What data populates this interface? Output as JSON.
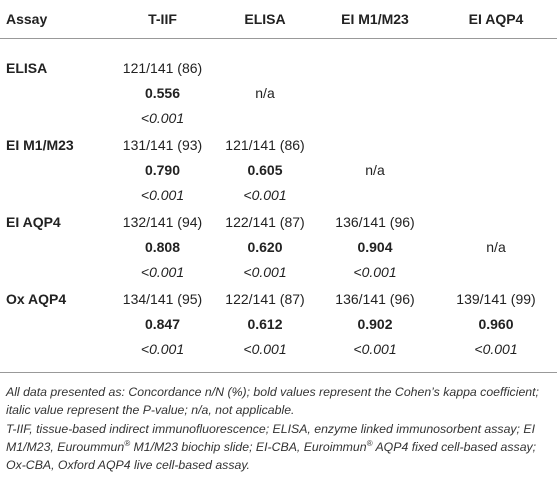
{
  "table": {
    "header": [
      "Assay",
      "T-IIF",
      "ELISA",
      "EI M1/M23",
      "EI AQP4"
    ],
    "rows": [
      {
        "label": "ELISA",
        "cells": [
          {
            "concordance": "121/141 (86)",
            "kappa": "0.556",
            "p": "<0.001"
          },
          {
            "text": "n/a"
          }
        ]
      },
      {
        "label": "EI M1/M23",
        "cells": [
          {
            "concordance": "131/141 (93)",
            "kappa": "0.790",
            "p": "<0.001"
          },
          {
            "concordance": "121/141 (86)",
            "kappa": "0.605",
            "p": "<0.001"
          },
          {
            "text": "n/a"
          }
        ]
      },
      {
        "label": "EI AQP4",
        "cells": [
          {
            "concordance": "132/141 (94)",
            "kappa": "0.808",
            "p": "<0.001"
          },
          {
            "concordance": "122/141 (87)",
            "kappa": "0.620",
            "p": "<0.001"
          },
          {
            "concordance": "136/141 (96)",
            "kappa": "0.904",
            "p": "<0.001"
          },
          {
            "text": "n/a"
          }
        ]
      },
      {
        "label": "Ox AQP4",
        "cells": [
          {
            "concordance": "134/141 (95)",
            "kappa": "0.847",
            "p": "<0.001"
          },
          {
            "concordance": "122/141 (87)",
            "kappa": "0.612",
            "p": "<0.001"
          },
          {
            "concordance": "136/141 (96)",
            "kappa": "0.902",
            "p": "<0.001"
          },
          {
            "concordance": "139/141 (99)",
            "kappa": "0.960",
            "p": "<0.001"
          }
        ]
      }
    ]
  },
  "footnotes": [
    "All data presented as: Concordance n/N (%); bold values represent the Cohen’s kappa coefficient; italic value represent the P-value; n/a, not applicable.",
    "T-IIF, tissue-based indirect immunofluorescence; ELISA, enzyme linked immunosorbent assay; EI M1/M23, Euroummun® M1/M23 biochip slide; EI-CBA, Euroimmun® AQP4 fixed cell-based assay; Ox-CBA, Oxford AQP4 live cell-based assay."
  ]
}
